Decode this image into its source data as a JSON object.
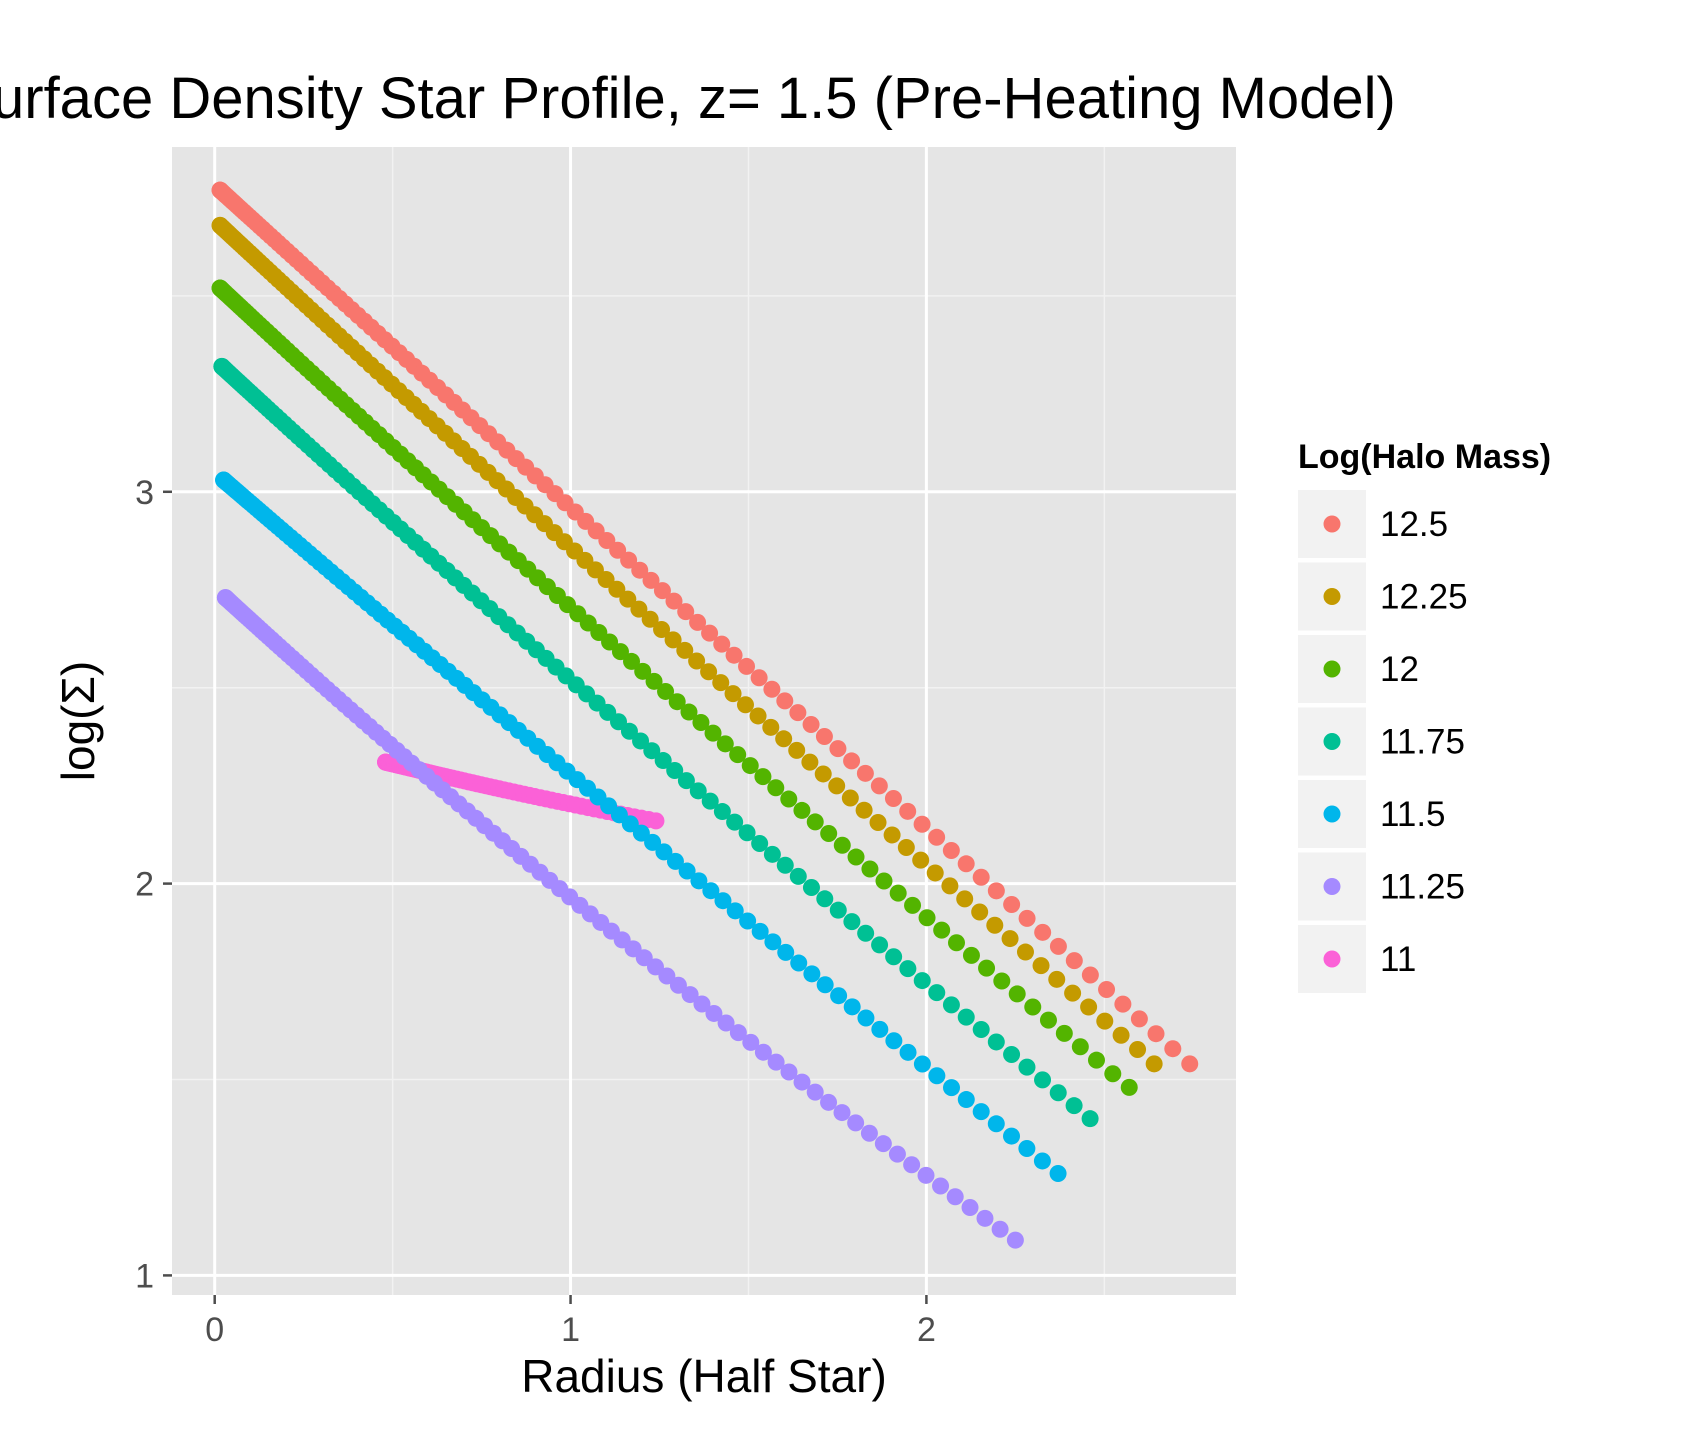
{
  "chart_data": {
    "type": "scatter",
    "title": "urface Density Star Profile, z= 1.5 (Pre-Heating Model)",
    "xlabel": "Radius (Half Star)",
    "ylabel": "log(Σ)",
    "xlim": [
      -0.12,
      2.87
    ],
    "ylim": [
      0.95,
      3.88
    ],
    "x_ticks": [
      0,
      1,
      2
    ],
    "y_ticks": [
      1,
      2,
      3
    ],
    "grid": true,
    "legend": {
      "title": "Log(Halo Mass)",
      "placement": "right"
    },
    "series": [
      {
        "name": "12.5",
        "color": "#F8766D",
        "x_start": 0.015,
        "x_end": 2.74,
        "y_start": 3.77,
        "y_mid": 2.65,
        "y_end": 1.54
      },
      {
        "name": "12.25",
        "color": "#C49A00",
        "x_start": 0.015,
        "x_end": 2.64,
        "y_start": 3.68,
        "y_mid": 2.59,
        "y_end": 1.54
      },
      {
        "name": "12",
        "color": "#53B400",
        "x_start": 0.015,
        "x_end": 2.57,
        "y_start": 3.52,
        "y_mid": 2.47,
        "y_end": 1.48
      },
      {
        "name": "11.75",
        "color": "#00C094",
        "x_start": 0.02,
        "x_end": 2.46,
        "y_start": 3.32,
        "y_mid": 2.33,
        "y_end": 1.4
      },
      {
        "name": "11.5",
        "color": "#00B6EB",
        "x_start": 0.025,
        "x_end": 2.37,
        "y_start": 3.03,
        "y_mid": 2.13,
        "y_end": 1.26
      },
      {
        "name": "11.25",
        "color": "#A58AFF",
        "x_start": 0.03,
        "x_end": 2.25,
        "y_start": 2.73,
        "y_mid": 1.86,
        "y_end": 1.09
      },
      {
        "name": "11",
        "color": "#FB61D7",
        "x_start": 0.48,
        "x_end": 1.24,
        "y_start": 2.31,
        "y_mid": 2.23,
        "y_end": 2.16
      }
    ]
  }
}
